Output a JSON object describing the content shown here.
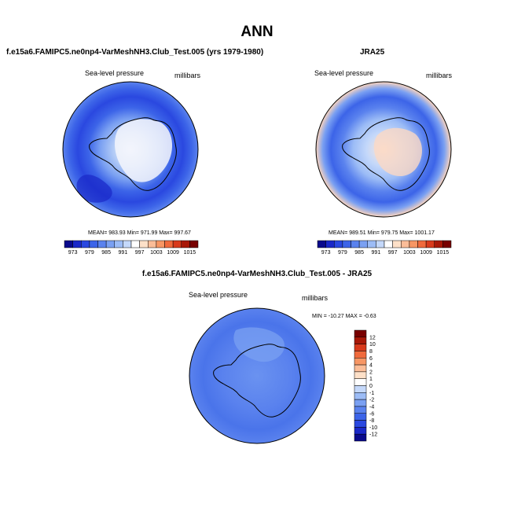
{
  "main_title": "ANN",
  "colors": {
    "scale": [
      "#0a0a8c",
      "#1a28c8",
      "#2a48e0",
      "#3c64e8",
      "#5a82ee",
      "#7aa0f2",
      "#9cbcf6",
      "#c4d8fa",
      "#ffffff",
      "#fde0c8",
      "#fbbd98",
      "#f79664",
      "#f06a3c",
      "#d83a1c",
      "#a81808",
      "#780000"
    ],
    "coast": "#000000"
  },
  "chart_data": [
    {
      "id": "test",
      "type": "heatmap",
      "projection": "polar-stereographic-south",
      "title": "f.e15a6.FAMIPC5.ne0np4-VarMeshNH3.Club_Test.005 (yrs 1979-1980)",
      "field_label": "Sea-level pressure",
      "units": "millibars",
      "stats": {
        "mean": "983.93",
        "min": "971.99",
        "max": "997.67"
      },
      "stats_text": "MEAN= 983.93   Min= 971.99   Max= 997.67",
      "colorbar": {
        "orientation": "horizontal",
        "levels": [
          973,
          976,
          979,
          982,
          985,
          988,
          991,
          994,
          997,
          1000,
          1003,
          1006,
          1009,
          1012,
          1015
        ],
        "labels": [
          "973",
          "979",
          "985",
          "991",
          "997",
          "1003",
          "1009",
          "1015"
        ]
      }
    },
    {
      "id": "ref",
      "type": "heatmap",
      "projection": "polar-stereographic-south",
      "title": "JRA25",
      "field_label": "Sea-level pressure",
      "units": "millibars",
      "stats": {
        "mean": "989.51",
        "min": "979.75",
        "max": "1001.17"
      },
      "stats_text": "MEAN= 989.51   Min= 979.75   Max= 1001.17",
      "colorbar": {
        "orientation": "horizontal",
        "levels": [
          973,
          976,
          979,
          982,
          985,
          988,
          991,
          994,
          997,
          1000,
          1003,
          1006,
          1009,
          1012,
          1015
        ],
        "labels": [
          "973",
          "979",
          "985",
          "991",
          "997",
          "1003",
          "1009",
          "1015"
        ]
      }
    },
    {
      "id": "diff",
      "type": "heatmap",
      "projection": "polar-stereographic-south",
      "title": "f.e15a6.FAMIPC5.ne0np4-VarMeshNH3.Club_Test.005 - JRA25",
      "field_label": "Sea-level pressure",
      "units": "millibars",
      "stats": {
        "min": "-10.27",
        "max": "-0.63"
      },
      "stats_text": "MIN = -10.27  MAX =  -0.63",
      "colorbar": {
        "orientation": "vertical",
        "levels": [
          12,
          10,
          8,
          6,
          4,
          2,
          1,
          0,
          -1,
          -2,
          -4,
          -6,
          -8,
          -10,
          -12
        ],
        "labels": [
          "12",
          "10",
          "8",
          "6",
          "4",
          "2",
          "1",
          "0",
          "-1",
          "-2",
          "-4",
          "-6",
          "-8",
          "-10",
          "-12"
        ]
      }
    }
  ]
}
